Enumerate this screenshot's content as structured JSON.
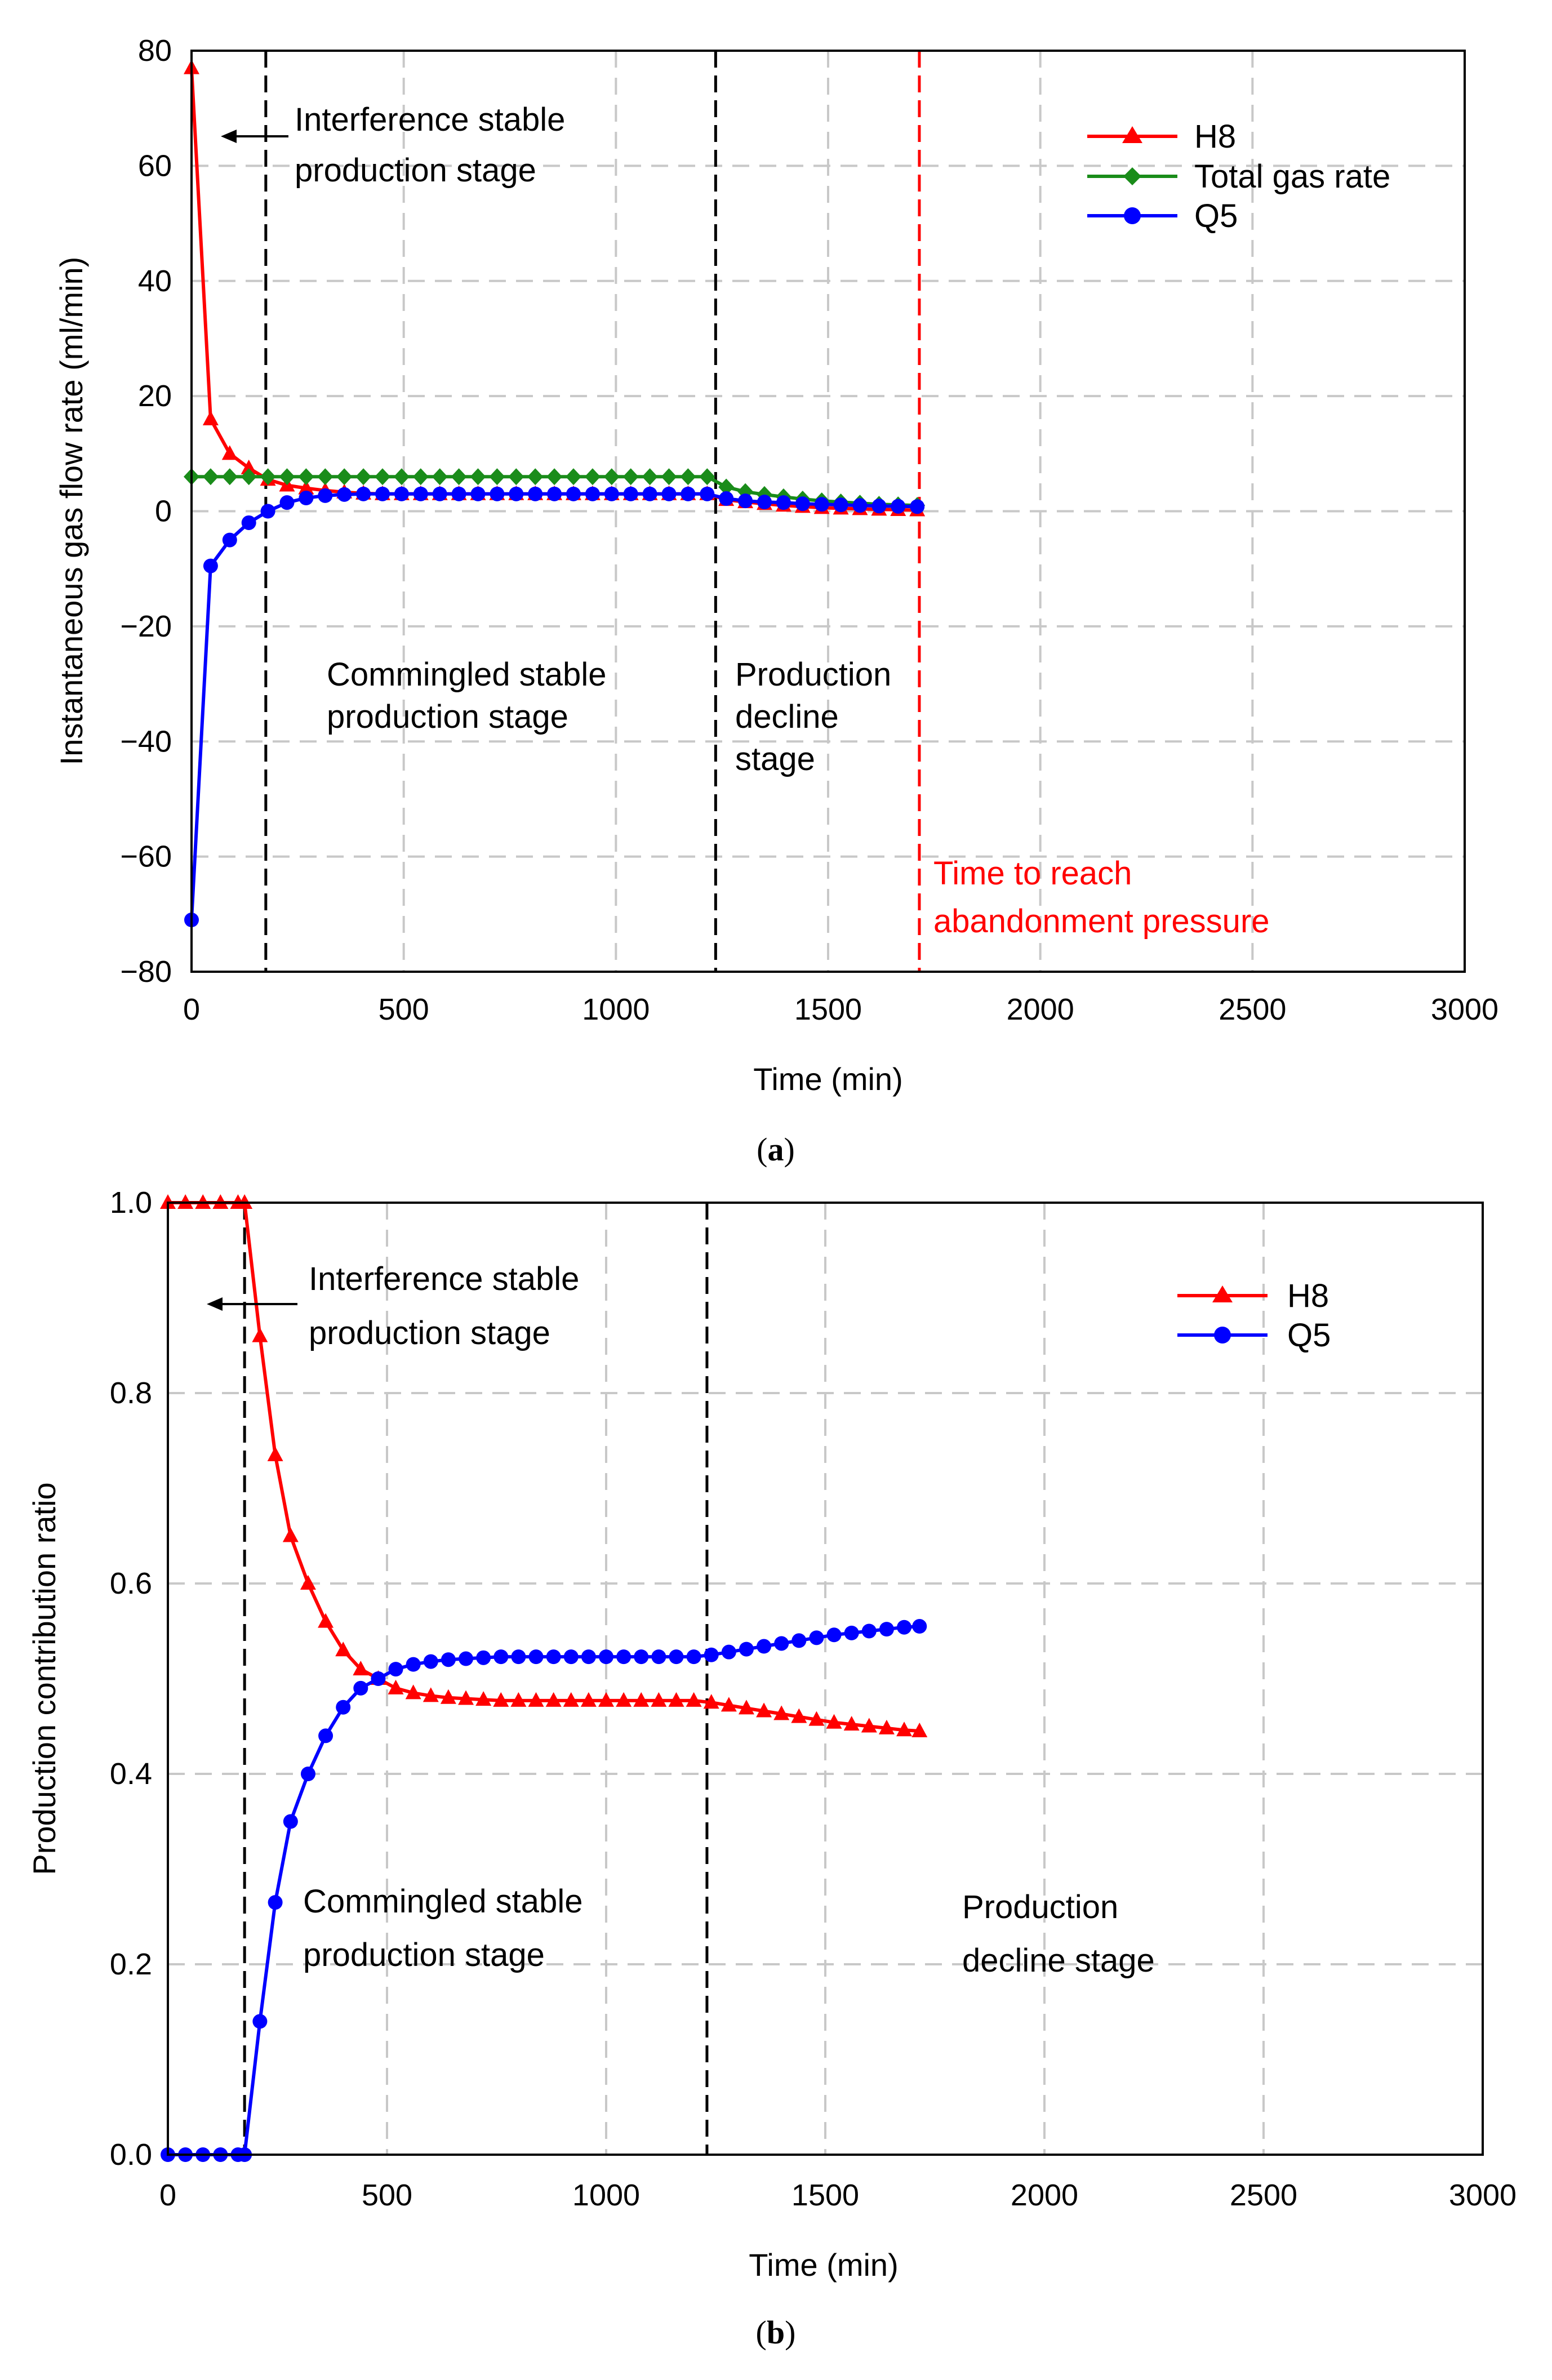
{
  "chart_data": [
    {
      "type": "line",
      "panel_label": "a",
      "xlabel": "Time (min)",
      "ylabel": "Instantaneous gas flow rate (ml/min)",
      "xlim": [
        0,
        3000
      ],
      "ylim": [
        -80,
        80
      ],
      "xticks": [
        "0",
        "500",
        "1000",
        "1500",
        "2000",
        "2500",
        "3000"
      ],
      "yticks": [
        "80",
        "60",
        "40",
        "20",
        "0",
        "−20",
        "−40",
        "−60",
        "−80"
      ],
      "legend_position": "top-right",
      "series": [
        {
          "name": "H8",
          "color": "#ff0000",
          "marker": "triangle",
          "x": [
            0,
            45,
            90,
            135,
            180,
            225,
            270,
            315,
            360,
            405,
            450,
            495,
            540,
            585,
            630,
            675,
            720,
            765,
            810,
            855,
            900,
            945,
            990,
            1035,
            1080,
            1125,
            1170,
            1215,
            1260,
            1305,
            1350,
            1395,
            1440,
            1485,
            1530,
            1575,
            1620,
            1665,
            1710
          ],
          "y": [
            77,
            16,
            10,
            7.5,
            5.5,
            4.5,
            4,
            3.6,
            3.3,
            3.1,
            3,
            3,
            3,
            3,
            3,
            3,
            3,
            3,
            3,
            3,
            3,
            3,
            3,
            3,
            3,
            3,
            3,
            3,
            2,
            1.6,
            1.3,
            1,
            0.8,
            0.6,
            0.5,
            0.4,
            0.3,
            0.25,
            0.2
          ]
        },
        {
          "name": "Total gas rate",
          "color": "#1a8c1a",
          "marker": "diamond",
          "x": [
            0,
            45,
            90,
            135,
            180,
            225,
            270,
            315,
            360,
            405,
            450,
            495,
            540,
            585,
            630,
            675,
            720,
            765,
            810,
            855,
            900,
            945,
            990,
            1035,
            1080,
            1125,
            1170,
            1215,
            1260,
            1305,
            1350,
            1395,
            1440,
            1485,
            1530,
            1575,
            1620,
            1665,
            1710
          ],
          "y": [
            6,
            6,
            6,
            6,
            6,
            6,
            6,
            6,
            6,
            6,
            6,
            6,
            6,
            6,
            6,
            6,
            6,
            6,
            6,
            6,
            6,
            6,
            6,
            6,
            6,
            6,
            6,
            6,
            4.2,
            3.4,
            2.9,
            2.5,
            2.1,
            1.8,
            1.6,
            1.4,
            1.2,
            1.1,
            1
          ]
        },
        {
          "name": "Q5",
          "color": "#0000ff",
          "marker": "circle",
          "x": [
            0,
            45,
            90,
            135,
            180,
            225,
            270,
            315,
            360,
            405,
            450,
            495,
            540,
            585,
            630,
            675,
            720,
            765,
            810,
            855,
            900,
            945,
            990,
            1035,
            1080,
            1125,
            1170,
            1215,
            1260,
            1305,
            1350,
            1395,
            1440,
            1485,
            1530,
            1575,
            1620,
            1665,
            1710
          ],
          "y": [
            -71,
            -9.5,
            -5,
            -2,
            0,
            1.5,
            2.3,
            2.7,
            2.9,
            3,
            3,
            3,
            3,
            3,
            3,
            3,
            3,
            3,
            3,
            3,
            3,
            3,
            3,
            3,
            3,
            3,
            3,
            3,
            2.2,
            1.8,
            1.6,
            1.5,
            1.3,
            1.2,
            1.1,
            1,
            0.9,
            0.85,
            0.8
          ]
        }
      ],
      "vlines": [
        {
          "x": 175,
          "color": "#000000"
        },
        {
          "x": 1235,
          "color": "#000000"
        },
        {
          "x": 1715,
          "color": "#ff0000"
        }
      ],
      "annotations": [
        {
          "lines": [
            "Interference stable",
            "production stage"
          ],
          "color": "#000000"
        },
        {
          "lines": [
            "Commingled stable",
            "production stage"
          ],
          "color": "#000000"
        },
        {
          "lines": [
            "Production",
            "decline",
            "stage"
          ],
          "color": "#000000"
        },
        {
          "lines": [
            "Time to reach",
            "abandonment pressure"
          ],
          "color": "#ff0000"
        }
      ]
    },
    {
      "type": "line",
      "panel_label": "b",
      "xlabel": "Time (min)",
      "ylabel": "Production contribution ratio",
      "xlim": [
        0,
        3000
      ],
      "ylim": [
        0,
        1
      ],
      "xticks": [
        "0",
        "500",
        "1000",
        "1500",
        "2000",
        "2500",
        "3000"
      ],
      "yticks": [
        "1.0",
        "0.8",
        "0.6",
        "0.4",
        "0.2",
        "0.0"
      ],
      "legend_position": "top-right",
      "series": [
        {
          "name": "H8",
          "color": "#ff0000",
          "marker": "triangle",
          "x": [
            0,
            40,
            80,
            120,
            160,
            175,
            210,
            245,
            280,
            320,
            360,
            400,
            440,
            480,
            520,
            560,
            600,
            640,
            680,
            720,
            760,
            800,
            840,
            880,
            920,
            960,
            1000,
            1040,
            1080,
            1120,
            1160,
            1200,
            1240,
            1280,
            1320,
            1360,
            1400,
            1440,
            1480,
            1520,
            1560,
            1600,
            1640,
            1680,
            1715
          ],
          "y": [
            1,
            1,
            1,
            1,
            1,
            1,
            0.86,
            0.735,
            0.65,
            0.6,
            0.56,
            0.53,
            0.51,
            0.5,
            0.49,
            0.485,
            0.482,
            0.48,
            0.479,
            0.478,
            0.477,
            0.477,
            0.477,
            0.477,
            0.477,
            0.477,
            0.477,
            0.477,
            0.477,
            0.477,
            0.477,
            0.477,
            0.475,
            0.472,
            0.469,
            0.466,
            0.463,
            0.46,
            0.457,
            0.454,
            0.452,
            0.45,
            0.448,
            0.446,
            0.445
          ]
        },
        {
          "name": "Q5",
          "color": "#0000ff",
          "marker": "circle",
          "x": [
            0,
            40,
            80,
            120,
            160,
            175,
            210,
            245,
            280,
            320,
            360,
            400,
            440,
            480,
            520,
            560,
            600,
            640,
            680,
            720,
            760,
            800,
            840,
            880,
            920,
            960,
            1000,
            1040,
            1080,
            1120,
            1160,
            1200,
            1240,
            1280,
            1320,
            1360,
            1400,
            1440,
            1480,
            1520,
            1560,
            1600,
            1640,
            1680,
            1715
          ],
          "y": [
            0,
            0,
            0,
            0,
            0,
            0,
            0.14,
            0.265,
            0.35,
            0.4,
            0.44,
            0.47,
            0.49,
            0.5,
            0.51,
            0.515,
            0.518,
            0.52,
            0.521,
            0.522,
            0.523,
            0.523,
            0.523,
            0.523,
            0.523,
            0.523,
            0.523,
            0.523,
            0.523,
            0.523,
            0.523,
            0.523,
            0.525,
            0.528,
            0.531,
            0.534,
            0.537,
            0.54,
            0.543,
            0.546,
            0.548,
            0.55,
            0.552,
            0.554,
            0.555
          ]
        }
      ],
      "vlines": [
        {
          "x": 175,
          "color": "#000000"
        },
        {
          "x": 1230,
          "color": "#000000"
        }
      ],
      "annotations": [
        {
          "lines": [
            "Interference stable",
            "production stage"
          ],
          "color": "#000000"
        },
        {
          "lines": [
            "Commingled stable",
            "production stage"
          ],
          "color": "#000000"
        },
        {
          "lines": [
            "Production",
            "decline stage"
          ],
          "color": "#000000"
        }
      ]
    }
  ]
}
